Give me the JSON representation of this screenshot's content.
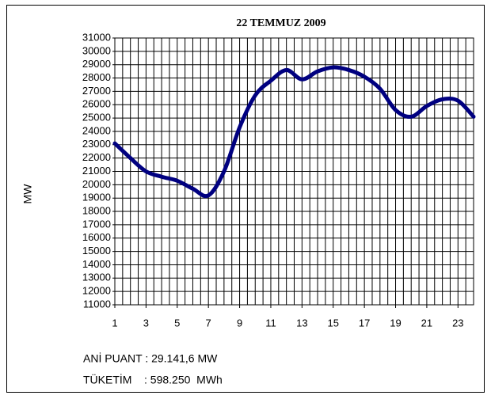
{
  "chart_data": {
    "type": "line",
    "title": "22 TEMMUZ 2009",
    "y_label": "MW",
    "x": [
      1,
      2,
      3,
      4,
      5,
      6,
      7,
      8,
      9,
      10,
      11,
      12,
      13,
      14,
      15,
      16,
      17,
      18,
      19,
      20,
      21,
      22,
      23,
      24
    ],
    "series": [
      {
        "name": "MW",
        "color": "#000080",
        "values": [
          23100,
          22000,
          21000,
          20600,
          20300,
          19700,
          19200,
          21000,
          24300,
          26700,
          27800,
          28600,
          27900,
          28500,
          28800,
          28600,
          28100,
          27200,
          25600,
          25100,
          25900,
          26400,
          26300,
          25100
        ]
      }
    ],
    "xlim": [
      1,
      24
    ],
    "xticks": [
      1,
      3,
      5,
      7,
      9,
      11,
      13,
      15,
      17,
      19,
      21,
      23
    ],
    "ylim": [
      11000,
      31000
    ],
    "yticks": [
      11000,
      12000,
      13000,
      14000,
      15000,
      16000,
      17000,
      18000,
      19000,
      20000,
      21000,
      22000,
      23000,
      24000,
      25000,
      26000,
      27000,
      28000,
      29000,
      30000,
      31000
    ],
    "grid": true,
    "annotations": [
      "ANİ PUANT : 29.141,6 MW",
      "TÜKETİM    : 598.250  MWh"
    ]
  }
}
